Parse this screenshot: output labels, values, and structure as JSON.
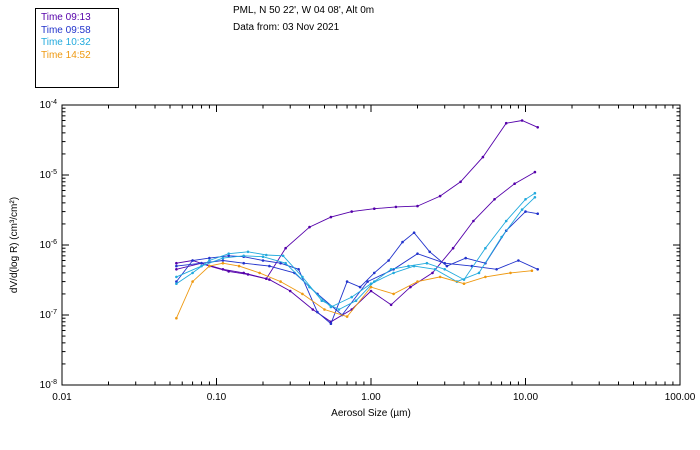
{
  "header": {
    "line1": "PML, N 50 22', W 04 08', Alt 0m",
    "line2": "Data from: 03 Nov 2021"
  },
  "legend": {
    "items": [
      {
        "label": "Time 09:13",
        "color": "#5500aa"
      },
      {
        "label": "Time 09:58",
        "color": "#2233cc"
      },
      {
        "label": "Time 10:32",
        "color": "#22aadd"
      },
      {
        "label": "Time 14:52",
        "color": "#ee9911"
      }
    ]
  },
  "chart_data": {
    "type": "line",
    "title": "PML, N 50 22', W 04 08', Alt 0m",
    "subtitle": "Data from: 03 Nov 2021",
    "x_scale": "log",
    "y_scale": "log",
    "xlabel": "Aerosol Size (µm)",
    "ylabel": "dV/d(log R) (cm³/cm²)",
    "xlim": [
      0.01,
      100.0
    ],
    "ylim": [
      1e-08,
      0.0001
    ],
    "grid": false,
    "legend_position": "top-left",
    "x_ticks": [
      {
        "value": 0.01,
        "label": "0.01"
      },
      {
        "value": 0.1,
        "label": "0.10"
      },
      {
        "value": 1.0,
        "label": "1.00"
      },
      {
        "value": 10.0,
        "label": "10.00"
      },
      {
        "value": 100.0,
        "label": "100.00"
      }
    ],
    "y_ticks": [
      {
        "value": 1e-08,
        "exponent": "-8"
      },
      {
        "value": 1e-07,
        "exponent": "-7"
      },
      {
        "value": 1e-06,
        "exponent": "-6"
      },
      {
        "value": 1e-05,
        "exponent": "-5"
      },
      {
        "value": 0.0001,
        "exponent": "-4"
      }
    ],
    "series": [
      {
        "name": "Time 09:13 (a)",
        "time": "09:13",
        "color": "#5500aa",
        "x": [
          0.055,
          0.08,
          0.11,
          0.15,
          0.21,
          0.28,
          0.4,
          0.55,
          0.75,
          1.05,
          1.45,
          2.0,
          2.8,
          3.8,
          5.3,
          7.5,
          9.5,
          12.0
        ],
        "y": [
          4.5e-07,
          5.5e-07,
          4.5e-07,
          4e-07,
          3.3e-07,
          9e-07,
          1.8e-06,
          2.5e-06,
          3e-06,
          3.3e-06,
          3.5e-06,
          3.6e-06,
          5e-06,
          8e-06,
          1.8e-05,
          5.5e-05,
          6e-05,
          4.8e-05
        ]
      },
      {
        "name": "Time 09:13 (b)",
        "time": "09:13",
        "color": "#5500aa",
        "x": [
          0.055,
          0.07,
          0.09,
          0.12,
          0.16,
          0.22,
          0.3,
          0.42,
          0.55,
          0.75,
          1.0,
          1.35,
          1.8,
          2.5,
          3.4,
          4.6,
          6.3,
          8.5,
          11.5
        ],
        "y": [
          5.5e-07,
          6e-07,
          5e-07,
          4.2e-07,
          3.8e-07,
          3.2e-07,
          2.2e-07,
          1.2e-07,
          8e-08,
          1.2e-07,
          2.2e-07,
          1.4e-07,
          2.5e-07,
          4e-07,
          9e-07,
          2.2e-06,
          4.5e-06,
          7.5e-06,
          1.1e-05
        ]
      },
      {
        "name": "Time 09:58 (a)",
        "time": "09:58",
        "color": "#2233cc",
        "x": [
          0.055,
          0.07,
          0.09,
          0.12,
          0.15,
          0.2,
          0.26,
          0.34,
          0.45,
          0.55,
          0.7,
          0.85,
          1.05,
          1.3,
          1.6,
          1.9,
          2.4,
          3.1,
          4.1,
          5.5,
          7.5,
          10.0,
          12.0
        ],
        "y": [
          3e-07,
          6e-07,
          6.5e-07,
          7e-07,
          6.8e-07,
          6e-07,
          5.5e-07,
          4.5e-07,
          1.1e-07,
          7.5e-08,
          3e-07,
          2.5e-07,
          4e-07,
          6e-07,
          1.1e-06,
          1.5e-06,
          8e-07,
          5e-07,
          6.5e-07,
          5.5e-07,
          1.6e-06,
          3e-06,
          2.8e-06
        ]
      },
      {
        "name": "Time 09:58 (b)",
        "time": "09:58",
        "color": "#2233cc",
        "x": [
          0.055,
          0.08,
          0.11,
          0.15,
          0.22,
          0.32,
          0.45,
          0.65,
          0.95,
          1.4,
          2.0,
          3.0,
          4.5,
          6.5,
          9.0,
          12.0
        ],
        "y": [
          5e-07,
          5.5e-07,
          6e-07,
          5.5e-07,
          5e-07,
          4e-07,
          2e-07,
          1e-07,
          3e-07,
          4.5e-07,
          7.5e-07,
          5.5e-07,
          5e-07,
          4.5e-07,
          6e-07,
          4.5e-07
        ]
      },
      {
        "name": "Time 10:32 (a)",
        "time": "10:32",
        "color": "#22aadd",
        "x": [
          0.055,
          0.07,
          0.09,
          0.12,
          0.16,
          0.21,
          0.27,
          0.36,
          0.48,
          0.62,
          0.8,
          1.05,
          1.35,
          1.75,
          2.3,
          3.0,
          4.0,
          5.5,
          7.5,
          10.0,
          11.5
        ],
        "y": [
          2.8e-07,
          4e-07,
          6e-07,
          7.5e-07,
          8e-07,
          7.2e-07,
          7e-07,
          3.5e-07,
          1.6e-07,
          1.2e-07,
          1.6e-07,
          3e-07,
          4.5e-07,
          5e-07,
          5.5e-07,
          4.5e-07,
          3.2e-07,
          9e-07,
          2.2e-06,
          4.5e-06,
          5.5e-06
        ]
      },
      {
        "name": "Time 10:32 (b)",
        "time": "10:32",
        "color": "#22aadd",
        "x": [
          0.055,
          0.08,
          0.11,
          0.15,
          0.2,
          0.28,
          0.4,
          0.55,
          0.75,
          1.0,
          1.4,
          1.9,
          2.6,
          3.6,
          5.0,
          7.0,
          9.5,
          11.5
        ],
        "y": [
          3.5e-07,
          5e-07,
          6.5e-07,
          7e-07,
          6.8e-07,
          5.5e-07,
          2.5e-07,
          1.3e-07,
          1.8e-07,
          2.8e-07,
          4e-07,
          5e-07,
          4.5e-07,
          3e-07,
          4e-07,
          1.3e-06,
          3.2e-06,
          4.8e-06
        ]
      },
      {
        "name": "Time 14:52",
        "time": "14:52",
        "color": "#ee9911",
        "x": [
          0.055,
          0.07,
          0.09,
          0.11,
          0.14,
          0.19,
          0.26,
          0.36,
          0.5,
          0.7,
          1.0,
          1.4,
          2.0,
          2.8,
          4.0,
          5.5,
          8.0,
          11.0
        ],
        "y": [
          9e-08,
          3e-07,
          5e-07,
          5.5e-07,
          5e-07,
          4e-07,
          3e-07,
          2e-07,
          1.2e-07,
          9.5e-08,
          2.5e-07,
          2e-07,
          3e-07,
          3.5e-07,
          2.8e-07,
          3.5e-07,
          4e-07,
          4.3e-07
        ]
      }
    ]
  }
}
